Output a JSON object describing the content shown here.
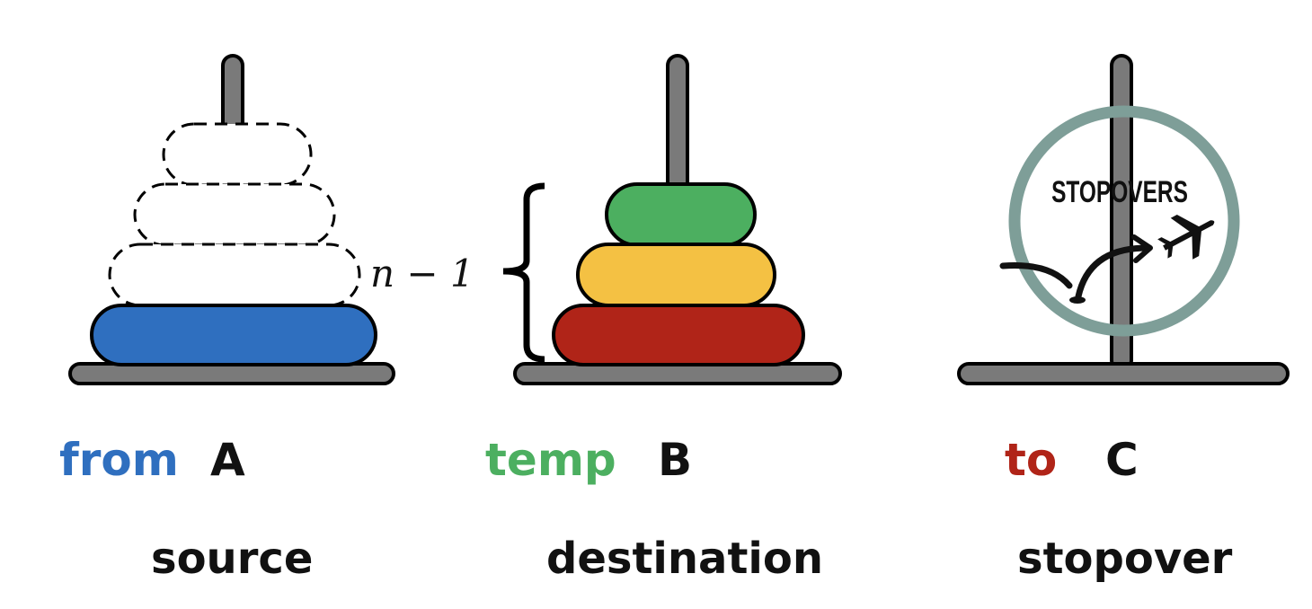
{
  "colors": {
    "peg": "#7a7a7a",
    "outline": "#000000",
    "from": "#2f6fbf",
    "temp": "#4caf60",
    "to": "#b02418",
    "disk_blue": "#2f6fbf",
    "disk_green": "#4caf60",
    "disk_yellow": "#f4c143",
    "disk_red": "#b02418",
    "stopover_ring": "#7e9e98"
  },
  "pegs": [
    {
      "keyword": "from",
      "letter": "A",
      "role": "source"
    },
    {
      "keyword": "temp",
      "letter": "B",
      "role": "destination"
    },
    {
      "keyword": "to",
      "letter": "C",
      "role": "stopover"
    }
  ],
  "brace_label": "n − 1",
  "stopover_logo": {
    "text": "STOPOVERS",
    "icon": "airplane-icon"
  }
}
